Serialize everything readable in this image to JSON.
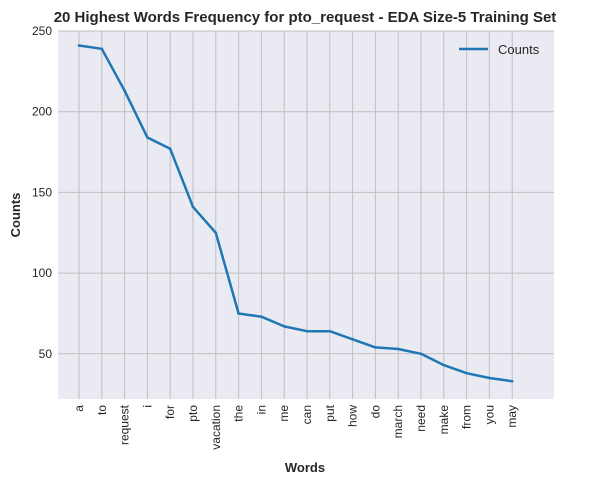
{
  "chart_data": {
    "type": "line",
    "title": "20 Highest Words Frequency for pto_request - EDA Size-5 Training Set",
    "xlabel": "Words",
    "ylabel": "Counts",
    "categories": [
      "a",
      "to",
      "request",
      "i",
      "for",
      "pto",
      "vacation",
      "the",
      "in",
      "me",
      "can",
      "put",
      "how",
      "do",
      "march",
      "need",
      "make",
      "from",
      "you",
      "may"
    ],
    "series": [
      {
        "name": "Counts",
        "color": "#1f77b4",
        "values": [
          241,
          239,
          213,
          184,
          177,
          141,
          125,
          75,
          73,
          67,
          64,
          64,
          59,
          54,
          53,
          50,
          43,
          38,
          35,
          33
        ]
      }
    ],
    "ylim": [
      22,
      250
    ],
    "yticks": [
      "50",
      "100",
      "150",
      "200",
      "250"
    ],
    "grid": true,
    "legend_position": "top-right",
    "colors": {
      "background": "#eaeaf2",
      "grid": "#c0c0c0",
      "line": "#1f77b4"
    }
  }
}
